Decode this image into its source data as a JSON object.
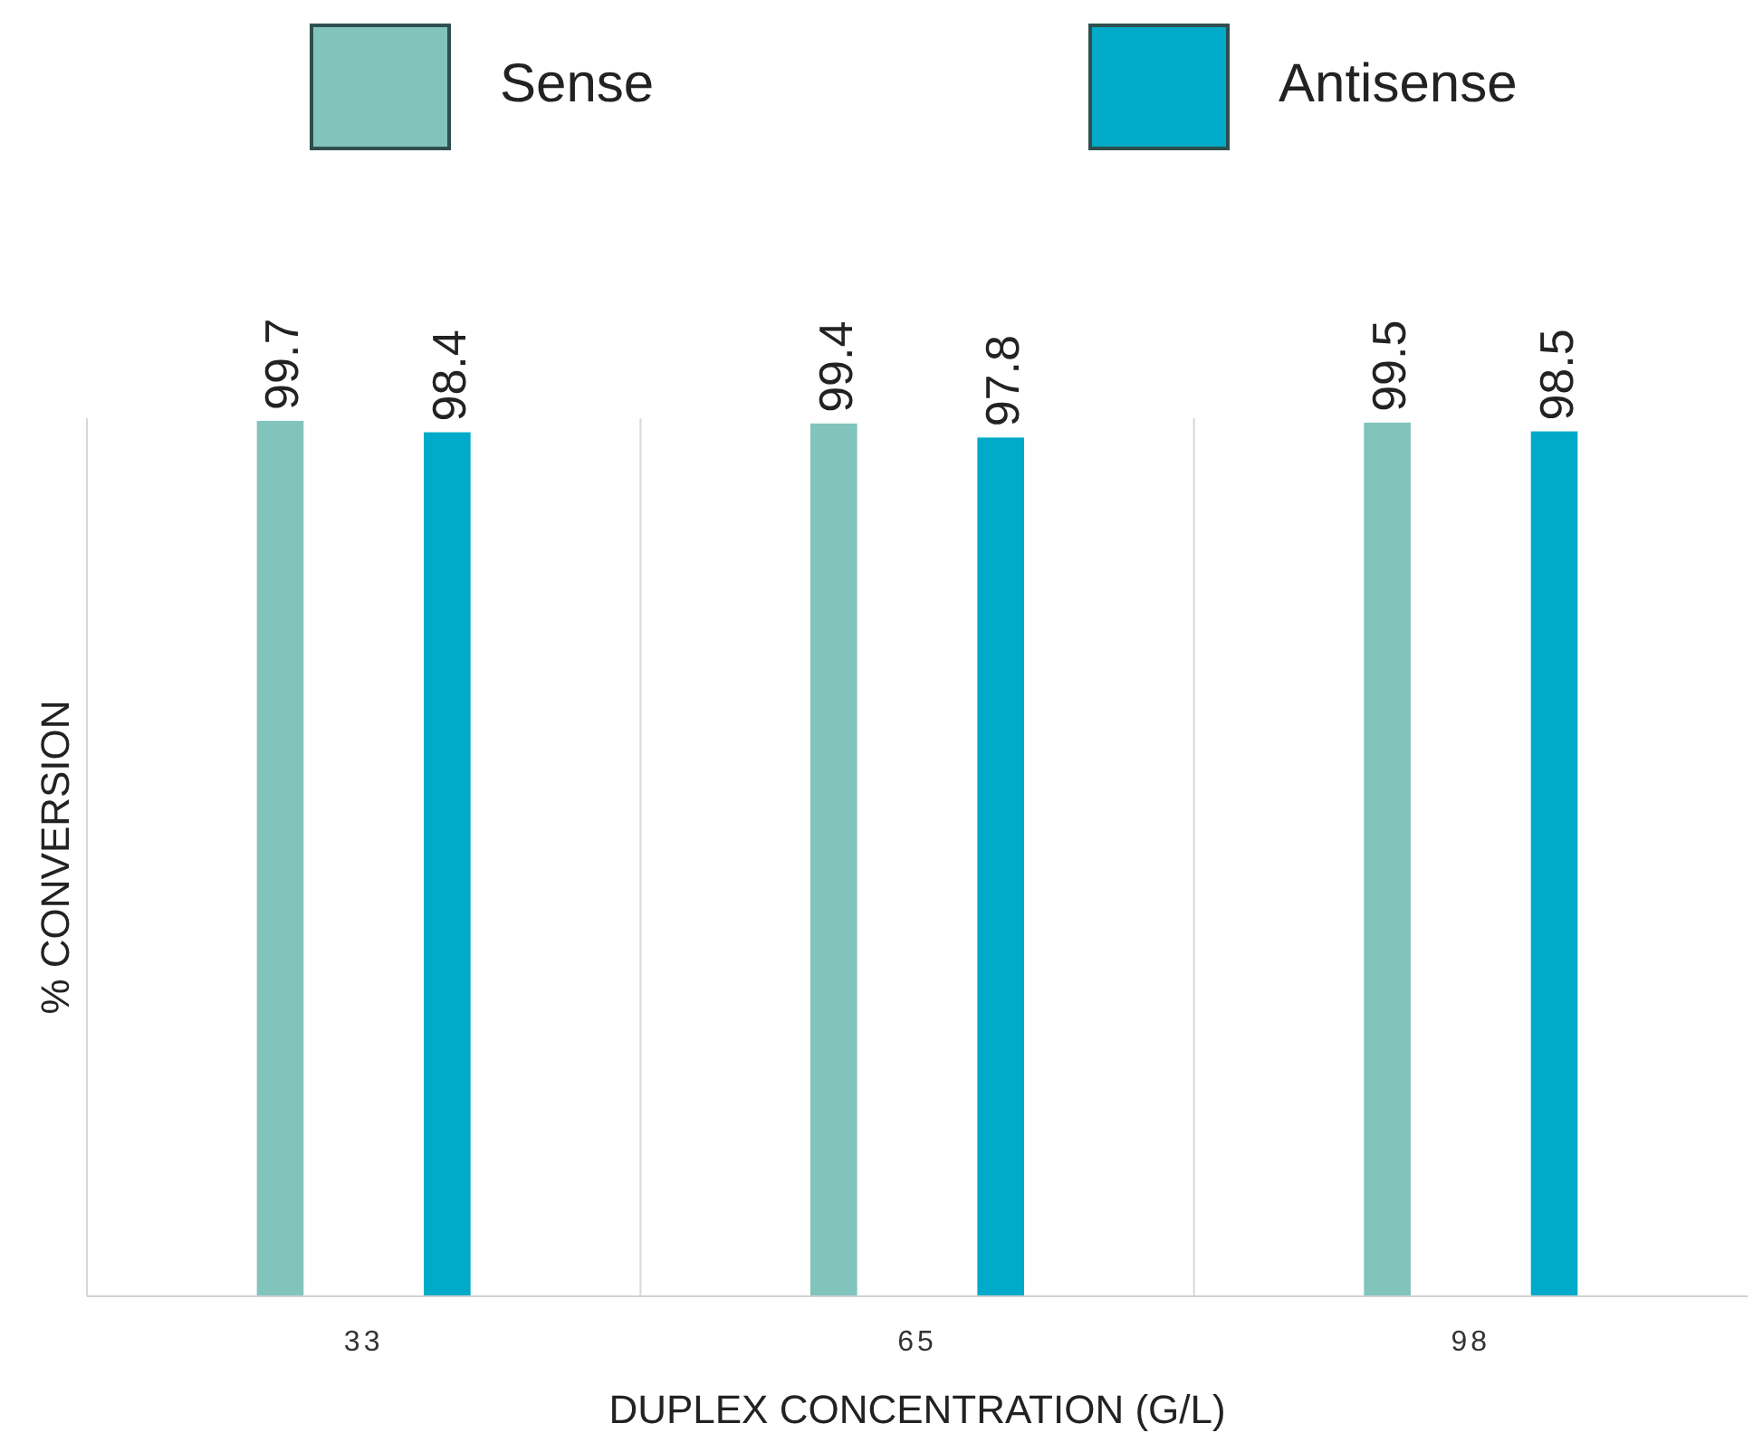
{
  "chart_data": {
    "type": "bar",
    "xlabel": "DUPLEX CONCENTRATION (G/L)",
    "ylabel": "% CONVERSION",
    "categories": [
      "33",
      "65",
      "98"
    ],
    "series": [
      {
        "name": "Sense",
        "color": "#80c4bc",
        "values": [
          99.7,
          99.4,
          99.5
        ]
      },
      {
        "name": "Antisense",
        "color": "#00aac8",
        "values": [
          98.4,
          97.8,
          98.5
        ]
      }
    ],
    "ylim": [
      0,
      100
    ],
    "data_labels": true,
    "grid": "x",
    "legend": "top"
  }
}
